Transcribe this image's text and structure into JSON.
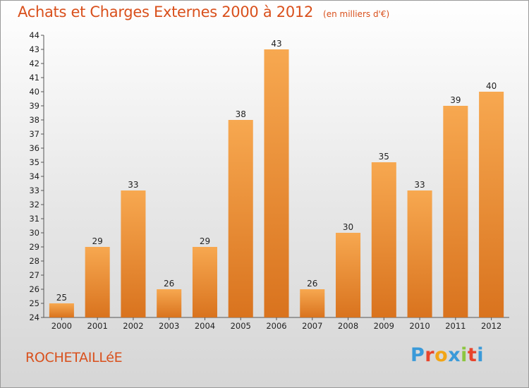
{
  "header": {
    "title": "Achats et Charges Externes 2000 à 2012",
    "subtitle": "(en milliers d'€)"
  },
  "footer": {
    "commune": "ROCHETAILLéE",
    "brand": [
      "P",
      "r",
      "o",
      "x",
      "i",
      "t",
      "i"
    ],
    "brand_colors": [
      "#3a9ad9",
      "#e8452c",
      "#f2a516",
      "#3a9ad9",
      "#8cc63f",
      "#e8452c",
      "#3a9ad9"
    ]
  },
  "chart_data": {
    "type": "bar",
    "categories": [
      "2000",
      "2001",
      "2002",
      "2003",
      "2004",
      "2005",
      "2006",
      "2007",
      "2008",
      "2009",
      "2010",
      "2011",
      "2012"
    ],
    "values": [
      25,
      29,
      33,
      26,
      29,
      38,
      43,
      26,
      30,
      35,
      33,
      39,
      40
    ],
    "ylim": [
      24,
      44
    ],
    "yticks": [
      24,
      25,
      26,
      27,
      28,
      29,
      30,
      31,
      32,
      33,
      34,
      35,
      36,
      37,
      38,
      39,
      40,
      41,
      42,
      43,
      44
    ],
    "grid": false,
    "bar_color_top": "#f7a850",
    "bar_color_bottom": "#d9731e"
  }
}
